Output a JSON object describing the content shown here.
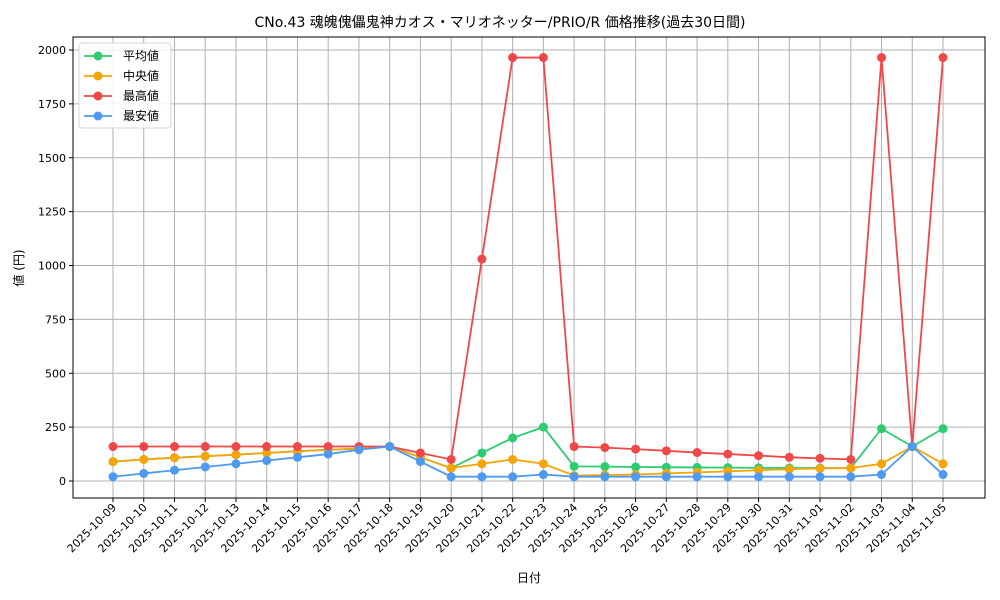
{
  "chart_data": {
    "type": "line",
    "title": "CNo.43 魂魄傀儡鬼神カオス・マリオネッター/PRIO/R 価格推移(過去30日間)",
    "xlabel": "日付",
    "ylabel": "値 (円)",
    "ylim": [
      -75,
      2060
    ],
    "yticks": [
      0,
      250,
      500,
      750,
      1000,
      1250,
      1500,
      1750,
      2000
    ],
    "grid": true,
    "legend_position": "upper left",
    "categories": [
      "2025-10-09",
      "2025-10-10",
      "2025-10-11",
      "2025-10-12",
      "2025-10-13",
      "2025-10-14",
      "2025-10-15",
      "2025-10-16",
      "2025-10-17",
      "2025-10-18",
      "2025-10-19",
      "2025-10-20",
      "2025-10-21",
      "2025-10-22",
      "2025-10-23",
      "2025-10-24",
      "2025-10-25",
      "2025-10-26",
      "2025-10-27",
      "2025-10-28",
      "2025-10-29",
      "2025-10-30",
      "2025-10-31",
      "2025-11-01",
      "2025-11-02",
      "2025-11-03",
      "2025-11-04",
      "2025-11-05"
    ],
    "series": [
      {
        "name": "平均値",
        "color": "#2ecc71",
        "values": [
          90,
          100,
          108,
          115,
          122,
          130,
          138,
          145,
          150,
          160,
          110,
          60,
          130,
          200,
          250,
          68,
          67,
          65,
          64,
          63,
          62,
          61,
          60,
          60,
          60,
          243,
          160,
          243
        ]
      },
      {
        "name": "中央値",
        "color": "#f5a50a",
        "values": [
          90,
          100,
          108,
          115,
          122,
          130,
          138,
          145,
          150,
          160,
          110,
          60,
          80,
          100,
          80,
          25,
          28,
          30,
          35,
          40,
          45,
          50,
          55,
          58,
          60,
          80,
          160,
          80
        ]
      },
      {
        "name": "最高値",
        "color": "#f04848",
        "values": [
          160,
          160,
          160,
          160,
          160,
          160,
          160,
          160,
          160,
          160,
          130,
          100,
          1030,
          1965,
          1965,
          160,
          155,
          148,
          140,
          132,
          125,
          118,
          110,
          105,
          100,
          1965,
          160,
          1965
        ]
      },
      {
        "name": "最安値",
        "color": "#4e9af1",
        "values": [
          20,
          35,
          50,
          65,
          80,
          95,
          110,
          125,
          145,
          160,
          90,
          20,
          20,
          20,
          30,
          20,
          20,
          20,
          20,
          20,
          20,
          20,
          20,
          20,
          20,
          30,
          160,
          30
        ]
      }
    ]
  }
}
